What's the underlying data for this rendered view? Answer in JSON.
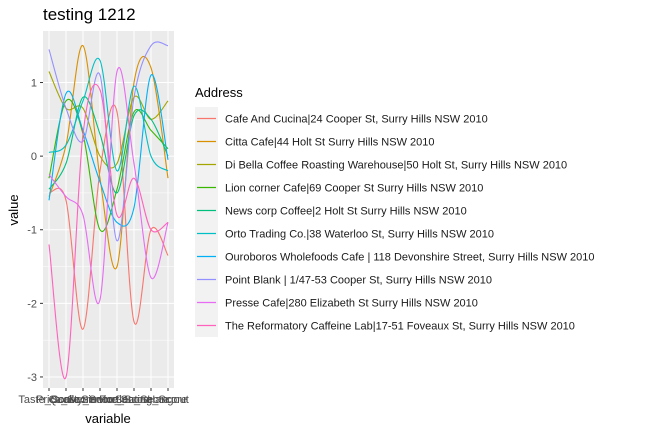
{
  "chart_data": {
    "type": "line",
    "title": "testing 1212",
    "xlabel": "variable",
    "ylabel": "value",
    "x_tick_labels": [
      "Taste_Score",
      "Price_Score",
      "Quality_Score",
      "Convenience_Score",
      "Service_Score",
      "Portion_Score",
      "Seating_Score",
      "Hangout"
    ],
    "y_ticks": [
      -3,
      -2,
      -1,
      0,
      1
    ],
    "ylim": [
      -3.15,
      1.7
    ],
    "grid": true,
    "legend": {
      "title": "Address",
      "position": "right"
    },
    "series": [
      {
        "name": "Cafe And Cucina|24 Cooper St, Surry Hills NSW 2010",
        "color": "#F8766D",
        "values": [
          -0.5,
          -0.6,
          -2.35,
          -0.2,
          0.6,
          -2.25,
          -1.0,
          -1.35
        ]
      },
      {
        "name": "Citta Cafe|44 Holt St Surry Hills NSW 2010",
        "color": "#D89000",
        "values": [
          -0.55,
          0.15,
          1.5,
          -0.3,
          -1.5,
          1.0,
          1.2,
          -0.3
        ]
      },
      {
        "name": "Di Bella Coffee Roasting Warehouse|50 Holt St, Surry Hills NSW 2010",
        "color": "#A3A500",
        "values": [
          1.15,
          0.65,
          0.65,
          0.0,
          -0.1,
          0.8,
          0.5,
          0.75
        ]
      },
      {
        "name": "Lion corner Cafe|69 Cooper St Surry Hills NSW 2010",
        "color": "#39B600",
        "values": [
          -0.3,
          0.75,
          0.3,
          -1.0,
          -0.45,
          0.6,
          0.35,
          0.1
        ]
      },
      {
        "name": "News corp Coffee|2 Holt St Surry Hills NSW 2010",
        "color": "#00BF7D",
        "values": [
          -0.45,
          -0.1,
          0.8,
          0.3,
          -0.5,
          0.55,
          0.5,
          0.0
        ]
      },
      {
        "name": "Orto Trading Co.|38 Waterloo St, Surry Hills NSW 2010",
        "color": "#00BFC4",
        "values": [
          0.05,
          0.15,
          0.75,
          1.3,
          -0.2,
          0.95,
          0.0,
          -0.2
        ]
      },
      {
        "name": "Ouroboros Wholefoods Cafe | 118 Devonshire Street, Surry Hills NSW 2010",
        "color": "#00B0F6",
        "values": [
          -0.6,
          0.85,
          0.35,
          -0.35,
          -0.9,
          -0.7,
          1.1,
          -0.05
        ]
      },
      {
        "name": "Point Blank | 1/47-53 Cooper St, Surry Hills NSW 2010",
        "color": "#9590FF",
        "values": [
          1.45,
          0.65,
          0.2,
          1.1,
          -1.15,
          0.8,
          1.5,
          1.5
        ]
      },
      {
        "name": "Presse Cafe|280 Elizabeth St Surry Hills NSW 2010",
        "color": "#E76BF3",
        "values": [
          -0.25,
          -0.55,
          -0.8,
          -1.95,
          1.15,
          -0.1,
          -1.65,
          -0.9
        ]
      },
      {
        "name": "The Reformatory Caffeine Lab|17-51 Foveaux St, Surry Hills NSW 2010",
        "color": "#FF62BC",
        "values": [
          -1.2,
          -3.0,
          0.3,
          0.9,
          -0.8,
          -0.3,
          -1.0,
          -0.9
        ]
      }
    ]
  }
}
